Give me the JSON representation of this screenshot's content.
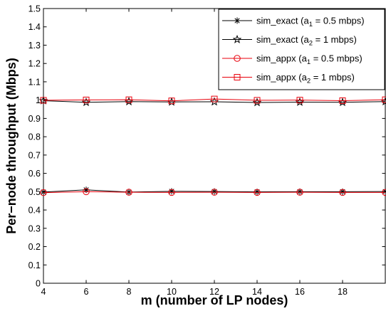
{
  "chart_data": {
    "type": "line",
    "xlabel": "m (number of LP nodes)",
    "ylabel": "Per−node throughput (Mbps)",
    "xlim": [
      4,
      20
    ],
    "ylim": [
      0,
      1.5
    ],
    "x_ticks": [
      "4",
      "6",
      "8",
      "10",
      "12",
      "14",
      "16",
      "18"
    ],
    "y_ticks": [
      "0",
      "0.1",
      "0.2",
      "0.3",
      "0.4",
      "0.5",
      "0.6",
      "0.7",
      "0.8",
      "0.9",
      "1",
      "1.1",
      "1.2",
      "1.3",
      "1.4",
      "1.5"
    ],
    "grid": false,
    "legend_position": "top-right",
    "x": [
      4,
      6,
      8,
      10,
      12,
      14,
      16,
      18,
      20
    ],
    "series": [
      {
        "legend_prefix": "sim_exact (a",
        "legend_sub": "1",
        "legend_suffix": " = 0.5 mbps)",
        "color": "#000000",
        "marker": "asterisk",
        "values": [
          0.498,
          0.51,
          0.498,
          0.502,
          0.501,
          0.499,
          0.5,
          0.5,
          0.501
        ]
      },
      {
        "legend_prefix": "sim_exact (a",
        "legend_sub": "2",
        "legend_suffix": " = 1 mbps)",
        "color": "#000000",
        "marker": "star",
        "values": [
          0.997,
          0.988,
          0.992,
          0.99,
          0.991,
          0.987,
          0.989,
          0.988,
          0.992
        ]
      },
      {
        "legend_prefix": "sim_appx (a",
        "legend_sub": "1",
        "legend_suffix": " = 0.5 mbps)",
        "color": "#e8000b",
        "marker": "circle",
        "values": [
          0.495,
          0.5,
          0.497,
          0.496,
          0.497,
          0.496,
          0.497,
          0.496,
          0.496
        ]
      },
      {
        "legend_prefix": "sim_appx (a",
        "legend_sub": "2",
        "legend_suffix": " = 1 mbps)",
        "color": "#e8000b",
        "marker": "square",
        "values": [
          0.999,
          1.001,
          1.002,
          0.996,
          1.006,
          0.999,
          1.0,
          0.997,
          1.002
        ]
      }
    ]
  }
}
